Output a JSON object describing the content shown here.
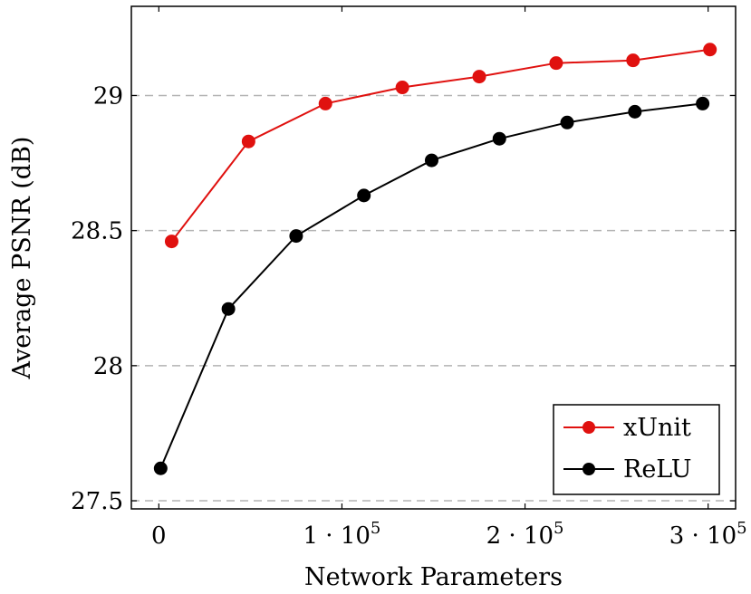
{
  "chart_data": {
    "type": "line",
    "xlabel": "Network Parameters",
    "ylabel": "Average PSNR (dB)",
    "xlim": [
      -15000,
      315000
    ],
    "ylim": [
      27.47,
      29.33
    ],
    "x_ticks": [
      {
        "value": 0,
        "label": "0"
      },
      {
        "value": 100000,
        "label": "1 · 10",
        "exp": "5"
      },
      {
        "value": 200000,
        "label": "2 · 10",
        "exp": "5"
      },
      {
        "value": 300000,
        "label": "3 · 10",
        "exp": "5"
      }
    ],
    "y_ticks": [
      {
        "value": 27.5,
        "label": "27.5"
      },
      {
        "value": 28,
        "label": "28"
      },
      {
        "value": 28.5,
        "label": "28.5"
      },
      {
        "value": 29,
        "label": "29"
      }
    ],
    "grid": "horizontal dashed",
    "legend_position": "bottom-right",
    "series": [
      {
        "name": "xUnit",
        "color": "#e0110f",
        "x": [
          7000,
          49000,
          91000,
          133000,
          175000,
          217000,
          259000,
          301000
        ],
        "y": [
          28.46,
          28.83,
          28.97,
          29.03,
          29.07,
          29.12,
          29.13,
          29.17
        ]
      },
      {
        "name": "ReLU",
        "color": "#000000",
        "x": [
          1000,
          38000,
          75000,
          112000,
          149000,
          186000,
          223000,
          260000,
          297000
        ],
        "y": [
          27.62,
          28.21,
          28.48,
          28.63,
          28.76,
          28.84,
          28.9,
          28.94,
          28.97
        ]
      }
    ]
  }
}
